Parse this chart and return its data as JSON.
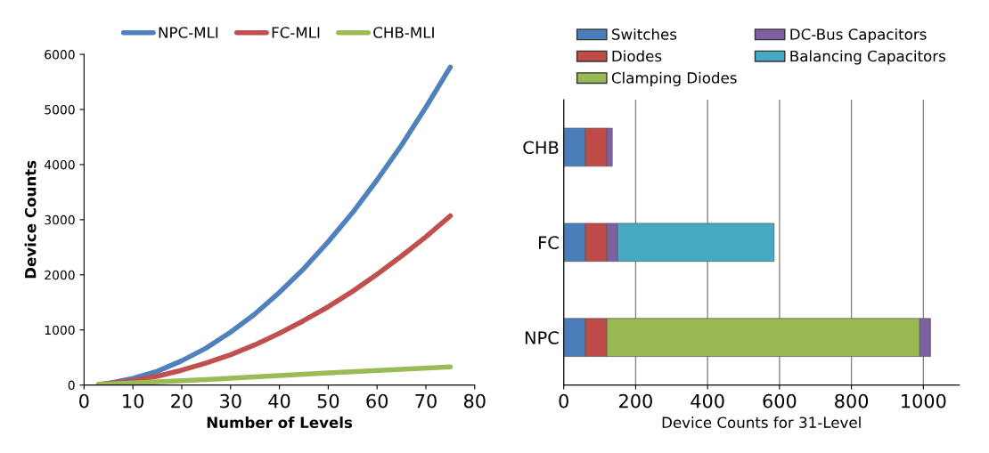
{
  "chart_data": [
    {
      "type": "line",
      "xlabel": "Number of Levels",
      "ylabel": "Device Counts",
      "xlim": [
        0,
        80
      ],
      "xticks": [
        0,
        10,
        20,
        30,
        40,
        50,
        60,
        70,
        80
      ],
      "ylim": [
        0,
        6000
      ],
      "yticks": [
        0,
        1000,
        2000,
        3000,
        4000,
        5000,
        6000
      ],
      "grid": false,
      "legend": "top",
      "marker": "none",
      "line_style": "solid",
      "x": [
        3,
        5,
        10,
        15,
        20,
        25,
        30,
        35,
        40,
        45,
        50,
        55,
        60,
        65,
        70,
        75
      ],
      "series": [
        {
          "name": "NPC-MLI",
          "color": "#4f81bd",
          "values": [
            10,
            30,
            120,
            250,
            440,
            670,
            960,
            1290,
            1680,
            2110,
            2600,
            3130,
            3720,
            4350,
            5040,
            5770
          ]
        },
        {
          "name": "FC-MLI",
          "color": "#c0504d",
          "values": [
            10,
            30,
            80,
            160,
            270,
            400,
            550,
            730,
            940,
            1170,
            1420,
            1700,
            2010,
            2340,
            2690,
            3070
          ]
        },
        {
          "name": "CHB-MLI",
          "color": "#9bbb59",
          "x": [
            3,
            25,
            50,
            75
          ],
          "values": [
            10,
            100,
            220,
            330
          ]
        }
      ]
    },
    {
      "type": "bar",
      "orientation": "horizontal",
      "stacked": true,
      "xlabel": "Device Counts for 31-Level",
      "xlim": [
        0,
        1100
      ],
      "xticks": [
        0,
        200,
        400,
        600,
        800,
        1000
      ],
      "grid": "x",
      "legend": "top",
      "categories": [
        "CHB",
        "FC",
        "NPC"
      ],
      "series": [
        {
          "name": "Switches",
          "color": "#4a7ebb",
          "values": [
            60,
            60,
            60
          ]
        },
        {
          "name": "Diodes",
          "color": "#be4b48",
          "values": [
            60,
            60,
            60
          ]
        },
        {
          "name": "Clamping Diodes",
          "color": "#98b954",
          "values": [
            null,
            null,
            870
          ]
        },
        {
          "name": "DC-Bus Capacitors",
          "color": "#7d60a0",
          "values": [
            15,
            30,
            30
          ]
        },
        {
          "name": "Balancing Capacitors",
          "color": "#46aac5",
          "values": [
            null,
            435,
            null
          ]
        }
      ]
    }
  ]
}
